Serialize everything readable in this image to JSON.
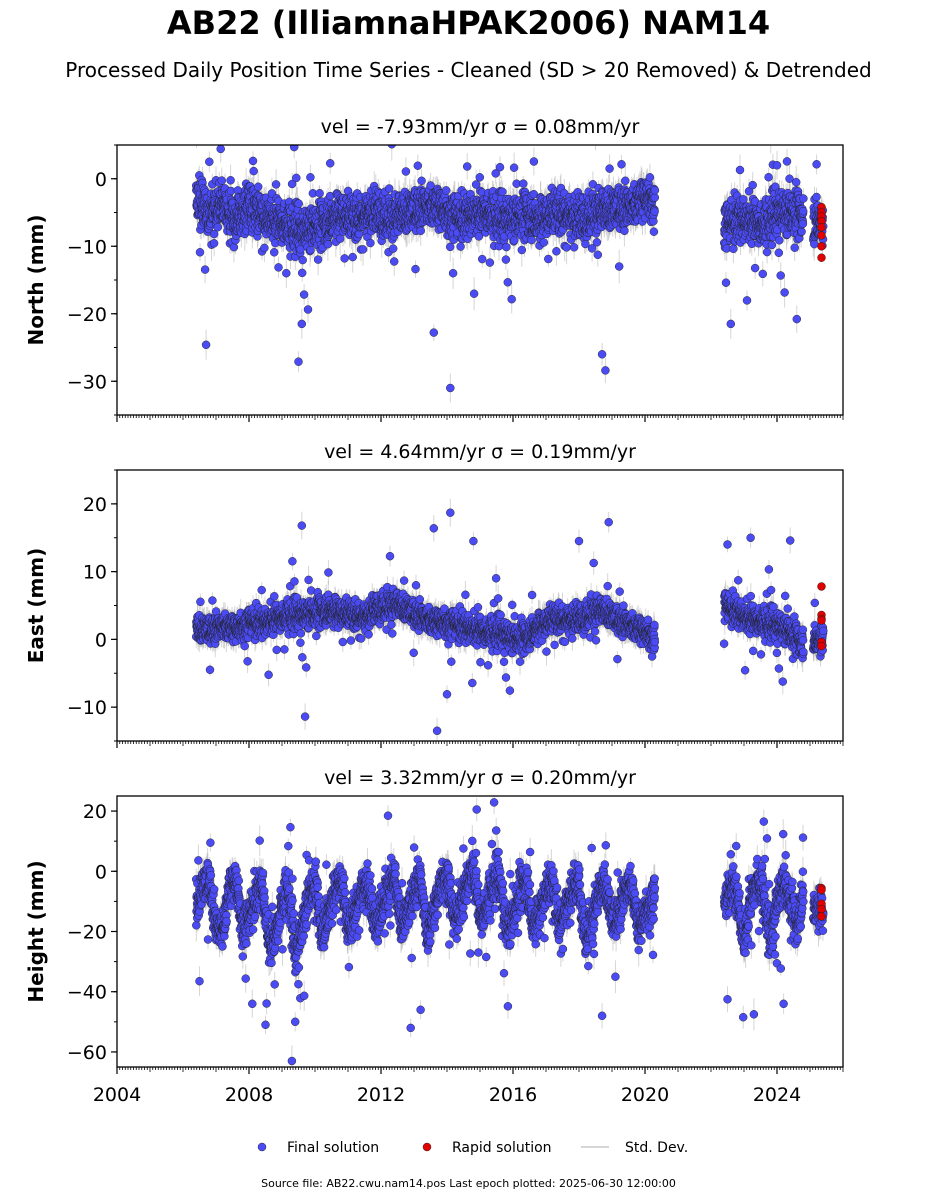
{
  "header": {
    "title": "AB22 (IlliamnaHPAK2006) NAM14",
    "subtitle": "Processed Daily Position Time Series - Cleaned (SD > 20 Removed) & Detrended"
  },
  "legend": {
    "placement": "bottom-center",
    "items": [
      {
        "label": "Final solution",
        "color": "#4b4bf5",
        "marker": "circle"
      },
      {
        "label": "Rapid solution",
        "color": "#e00000",
        "marker": "circle"
      },
      {
        "label": "Std. Dev.",
        "color": "#c8c8c8",
        "marker": "line"
      }
    ]
  },
  "footer": {
    "source": "Source file: AB22.cwu.nam14.pos  Last epoch plotted: 2025-06-30 12:00:00"
  },
  "colors": {
    "final": "#4b4bf5",
    "rapid": "#e00000",
    "stddev": "#b4b4b4",
    "outline": "#202020"
  },
  "chart_data": [
    {
      "type": "scatter",
      "title": "vel = -7.93mm/yr   σ = 0.08mm/yr",
      "ylabel": "North (mm)",
      "xlim": [
        2004,
        2026
      ],
      "ylim": [
        -35,
        5
      ],
      "yticks": [
        0,
        -10,
        -20,
        -30
      ],
      "ytick_labels": [
        "0",
        "−10",
        "−20",
        "−30"
      ],
      "grid": false,
      "series": [
        {
          "name": "Final solution",
          "segments": [
            {
              "x": [
                2006.4,
                2006.8,
                2007.2,
                2007.6,
                2008.0,
                2008.4,
                2008.8,
                2009.2,
                2009.6,
                2010.0,
                2010.4,
                2010.8,
                2011.2,
                2011.6,
                2012.0,
                2012.4,
                2012.8,
                2013.2,
                2013.6,
                2014.0,
                2014.4,
                2014.8,
                2015.2,
                2015.6,
                2016.0,
                2016.4,
                2016.8,
                2017.2,
                2017.6,
                2018.0,
                2018.4,
                2018.8,
                2019.2,
                2019.6,
                2020.0,
                2020.3
              ],
              "y": [
                -3,
                -5,
                -4,
                -6,
                -4,
                -5,
                -6,
                -7,
                -8,
                -7,
                -6,
                -5,
                -6,
                -5,
                -5,
                -6,
                -5,
                -4,
                -4,
                -5,
                -6,
                -5,
                -5,
                -6,
                -6,
                -5,
                -6,
                -5,
                -5,
                -6,
                -5,
                -5,
                -4,
                -4,
                -3,
                -3
              ]
            },
            {
              "x": [
                2022.4,
                2022.8,
                2023.2,
                2023.6,
                2024.0,
                2024.4,
                2024.8
              ],
              "y": [
                -7,
                -6,
                -6,
                -7,
                -5,
                -5,
                -5
              ]
            },
            {
              "x": [
                2025.1,
                2025.4
              ],
              "y": [
                -6,
                -6
              ]
            }
          ],
          "spread": 4.5,
          "std": 2.2,
          "err_half": 1.8,
          "outliers": [
            [
              2006.7,
              -24.6
            ],
            [
              2009.5,
              -27.1
            ],
            [
              2013.6,
              -22.8
            ],
            [
              2014.1,
              -31.0
            ],
            [
              2018.7,
              -26.0
            ],
            [
              2018.8,
              -28.4
            ],
            [
              2009.6,
              -21.5
            ],
            [
              2022.6,
              -21.5
            ],
            [
              2024.6,
              -20.8
            ],
            [
              2024.0,
              2.0
            ]
          ]
        },
        {
          "name": "Rapid solution",
          "x": [
            2025.35,
            2025.35,
            2025.35,
            2025.35,
            2025.35,
            2025.35,
            2025.35,
            2025.35
          ],
          "y": [
            -4.2,
            -5.0,
            -5.6,
            -6.3,
            -7.2,
            -8.4,
            -10.0,
            -11.7
          ]
        }
      ]
    },
    {
      "type": "scatter",
      "title": "vel = 4.64mm/yr   σ = 0.19mm/yr",
      "ylabel": "East (mm)",
      "xlim": [
        2004,
        2026
      ],
      "ylim": [
        -15,
        25
      ],
      "yticks": [
        20,
        10,
        0,
        -10
      ],
      "ytick_labels": [
        "20",
        "10",
        "0",
        "−10"
      ],
      "grid": false,
      "series": [
        {
          "name": "Final solution",
          "segments": [
            {
              "x": [
                2006.4,
                2006.8,
                2007.2,
                2007.6,
                2008.0,
                2008.4,
                2008.8,
                2009.2,
                2009.6,
                2010.0,
                2010.4,
                2010.8,
                2011.2,
                2011.6,
                2012.0,
                2012.4,
                2012.8,
                2013.2,
                2013.6,
                2014.0,
                2014.4,
                2014.8,
                2015.2,
                2015.6,
                2016.0,
                2016.4,
                2016.8,
                2017.2,
                2017.6,
                2018.0,
                2018.4,
                2018.8,
                2019.2,
                2019.6,
                2020.0,
                2020.3
              ],
              "y": [
                1.5,
                1.5,
                2,
                1.5,
                2.5,
                2.5,
                3,
                3.5,
                3.5,
                4,
                4.5,
                4,
                3.5,
                3.5,
                5,
                5,
                4.5,
                3.5,
                2.5,
                2.5,
                2,
                1.5,
                1,
                1,
                0,
                0.5,
                2,
                3,
                3,
                3,
                4,
                4,
                3,
                2,
                1,
                0.5
              ]
            },
            {
              "x": [
                2022.4,
                2022.8,
                2023.2,
                2023.6,
                2024.0,
                2024.4,
                2024.8
              ],
              "y": [
                5,
                4,
                3,
                2.5,
                2,
                1,
                -0.5
              ]
            },
            {
              "x": [
                2025.1,
                2025.4
              ],
              "y": [
                0,
                0
              ]
            }
          ],
          "spread": 3.0,
          "std": 1.4,
          "err_half": 1.5,
          "outliers": [
            [
              2009.7,
              -11.4
            ],
            [
              2013.7,
              -13.5
            ],
            [
              2014.0,
              -8.1
            ],
            [
              2009.6,
              16.8
            ],
            [
              2013.6,
              16.4
            ],
            [
              2014.1,
              18.7
            ],
            [
              2014.8,
              14.5
            ],
            [
              2018.9,
              17.3
            ],
            [
              2018.0,
              14.5
            ],
            [
              2024.4,
              14.6
            ],
            [
              2023.2,
              15.0
            ],
            [
              2022.5,
              14.0
            ]
          ]
        },
        {
          "name": "Rapid solution",
          "x": [
            2025.35,
            2025.35,
            2025.35,
            2025.35,
            2025.35,
            2025.35
          ],
          "y": [
            7.8,
            3.6,
            3.0,
            2.8,
            -0.4,
            -1.0
          ]
        }
      ]
    },
    {
      "type": "scatter",
      "title": "vel = 3.32mm/yr   σ = 0.20mm/yr",
      "ylabel": "Height (mm)",
      "xlabel": "",
      "xlim": [
        2004,
        2026
      ],
      "ylim": [
        -65,
        25
      ],
      "yticks": [
        20,
        0,
        -20,
        -40,
        -60
      ],
      "ytick_labels": [
        "20",
        "0",
        "−20",
        "−40",
        "−60"
      ],
      "xticks": [
        2004,
        2008,
        2012,
        2016,
        2020,
        2024
      ],
      "xtick_labels": [
        "2004",
        "2008",
        "2012",
        "2016",
        "2020",
        "2024"
      ],
      "grid": false,
      "series": [
        {
          "name": "Final solution",
          "segments": [
            {
              "x": [
                2006.4,
                2006.6,
                2006.8,
                2007.0,
                2007.2,
                2007.4,
                2007.6,
                2007.8,
                2008.0,
                2008.2,
                2008.4,
                2008.6,
                2008.8,
                2009.0,
                2009.2,
                2009.4,
                2009.6,
                2009.8,
                2010.0,
                2010.2,
                2010.4,
                2010.6,
                2010.8,
                2011.0,
                2011.2,
                2011.4,
                2011.6,
                2011.8,
                2012.0,
                2012.2,
                2012.4,
                2012.6,
                2012.8,
                2013.0,
                2013.2,
                2013.4,
                2013.6,
                2013.8,
                2014.0,
                2014.2,
                2014.4,
                2014.6,
                2014.8,
                2015.0,
                2015.2,
                2015.4,
                2015.6,
                2015.8,
                2016.0,
                2016.2,
                2016.4,
                2016.6,
                2016.8,
                2017.0,
                2017.2,
                2017.4,
                2017.6,
                2017.8,
                2018.0,
                2018.2,
                2018.4,
                2018.6,
                2018.8,
                2019.0,
                2019.2,
                2019.4,
                2019.6,
                2019.8,
                2020.0,
                2020.3
              ],
              "y": [
                -12,
                -5,
                -2,
                -18,
                -20,
                -6,
                -3,
                -18,
                -16,
                -8,
                -4,
                -24,
                -22,
                -10,
                -6,
                -28,
                -20,
                -8,
                -4,
                -20,
                -14,
                -6,
                -2,
                -20,
                -14,
                -6,
                -4,
                -18,
                -12,
                -6,
                -2,
                -18,
                -14,
                -6,
                -2,
                -22,
                -14,
                -5,
                0,
                -16,
                -12,
                -4,
                2,
                -16,
                -12,
                -4,
                -2,
                -20,
                -16,
                -6,
                -2,
                -18,
                -14,
                -6,
                -4,
                -18,
                -12,
                -6,
                -4,
                -22,
                -16,
                -8,
                -4,
                -16,
                -14,
                -6,
                -4,
                -20,
                -14,
                -8
              ]
            },
            {
              "x": [
                2022.4,
                2022.6,
                2022.8,
                2023.0,
                2023.2,
                2023.4,
                2023.6,
                2023.8,
                2024.0,
                2024.2,
                2024.4,
                2024.6,
                2024.8
              ],
              "y": [
                -12,
                -4,
                -8,
                -24,
                -10,
                -2,
                -8,
                -24,
                -10,
                -4,
                -10,
                -18,
                -6
              ]
            },
            {
              "x": [
                2025.1,
                2025.4
              ],
              "y": [
                -12,
                -12
              ]
            }
          ],
          "spread": 10,
          "std": 4.5,
          "err_half": 4,
          "outliers": [
            [
              2006.5,
              -36.5
            ],
            [
              2008.1,
              -44.0
            ],
            [
              2008.5,
              -51.0
            ],
            [
              2009.3,
              -63.0
            ],
            [
              2009.4,
              -50.0
            ],
            [
              2012.9,
              -52.0
            ],
            [
              2013.2,
              -46.0
            ],
            [
              2018.7,
              -48.0
            ],
            [
              2023.3,
              -47.5
            ],
            [
              2022.5,
              -42.5
            ],
            [
              2024.2,
              -44.0
            ],
            [
              2014.9,
              20.5
            ],
            [
              2023.6,
              16.5
            ]
          ]
        },
        {
          "name": "Rapid solution",
          "x": [
            2025.35,
            2025.35,
            2025.35,
            2025.35,
            2025.35
          ],
          "y": [
            -5.6,
            -6.2,
            -10.8,
            -12.6,
            -15.0
          ]
        }
      ]
    }
  ]
}
